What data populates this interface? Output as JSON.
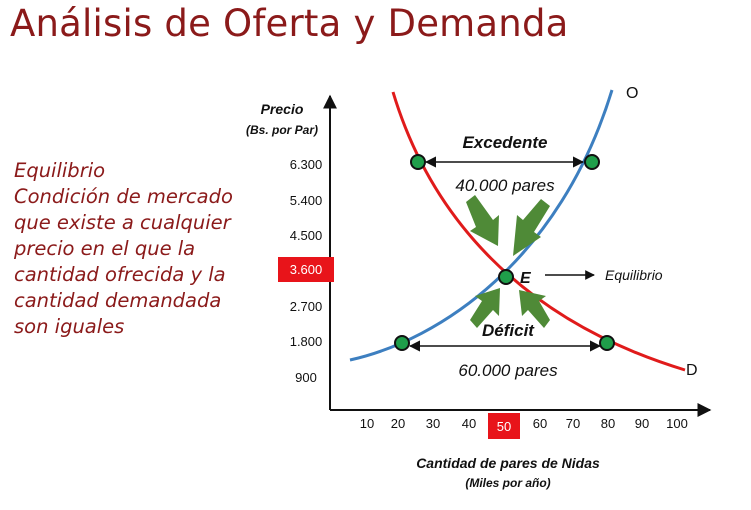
{
  "title": "Análisis de Oferta y Demanda",
  "definition": {
    "lines": [
      "Equilibrio",
      "Condición de mercado",
      "que existe a cualquier",
      "precio en el que la",
      "cantidad ofrecida y la",
      "cantidad demandada",
      "son iguales"
    ]
  },
  "chart": {
    "y_axis": {
      "title": "Precio",
      "subtitle": "(Bs. por Par)",
      "ticks": [
        "6.300",
        "5.400",
        "4.500",
        "3.600",
        "2.700",
        "1.800",
        "900"
      ],
      "highlighted": "3.600"
    },
    "x_axis": {
      "title": "Cantidad de pares de Nidas",
      "subtitle": "(Miles por año)",
      "ticks": [
        "10",
        "20",
        "30",
        "40",
        "50",
        "60",
        "70",
        "80",
        "90",
        "100"
      ],
      "highlighted": "50"
    },
    "supply_label": "O",
    "demand_label": "D",
    "surplus": {
      "label": "Excedente",
      "amount": "40.000 pares"
    },
    "shortage": {
      "label": "Déficit",
      "amount": "60.000 pares"
    },
    "equilibrium": {
      "point_label": "E",
      "arrow_label": "Equilibrio"
    },
    "colors": {
      "supply": "#3d7fc0",
      "demand": "#e01b1b",
      "point": "#1f9e4a",
      "arrow": "#4f8a37",
      "highlight": "#e8141a",
      "title": "#8b1a1a"
    }
  }
}
